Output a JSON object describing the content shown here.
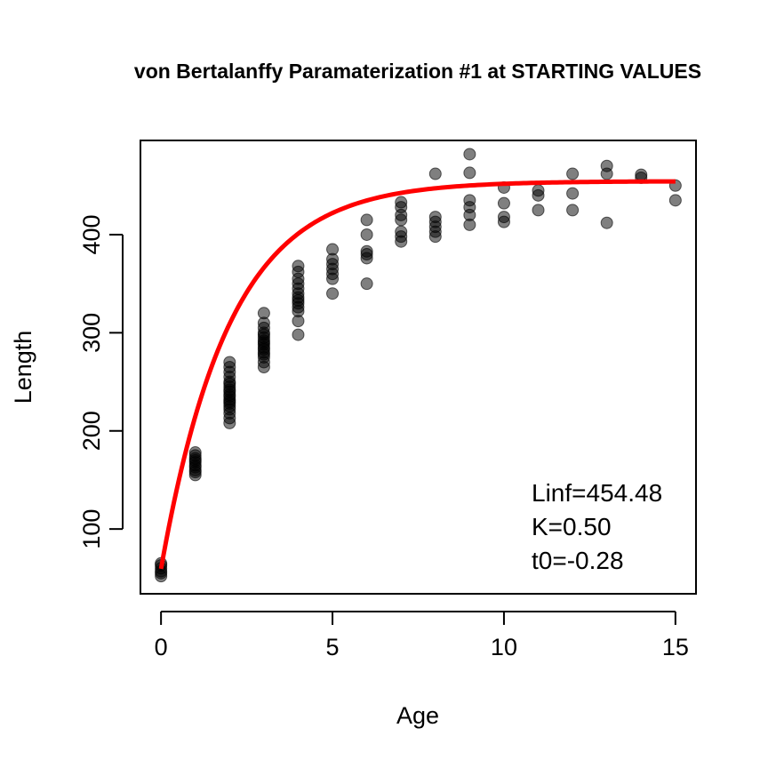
{
  "chart_data": {
    "type": "scatter",
    "title": "von Bertalanffy Paramaterization #1 at STARTING VALUES",
    "xlabel": "Age",
    "ylabel": "Length",
    "xlim": [
      -0.6,
      15.6
    ],
    "ylim": [
      34,
      496
    ],
    "x_ticks": [
      0,
      5,
      10,
      15
    ],
    "y_ticks": [
      100,
      200,
      300,
      400
    ],
    "grid": false,
    "point_color": "#000000",
    "point_opacity": 0.5,
    "curve_color": "#ff0000",
    "points": [
      [
        0,
        52
      ],
      [
        0,
        55
      ],
      [
        0,
        57
      ],
      [
        0,
        60
      ],
      [
        0,
        63
      ],
      [
        0,
        65
      ],
      [
        1,
        155
      ],
      [
        1,
        158
      ],
      [
        1,
        160
      ],
      [
        1,
        163
      ],
      [
        1,
        165
      ],
      [
        1,
        168
      ],
      [
        1,
        170
      ],
      [
        1,
        172
      ],
      [
        1,
        175
      ],
      [
        1,
        178
      ],
      [
        2,
        208
      ],
      [
        2,
        213
      ],
      [
        2,
        218
      ],
      [
        2,
        222
      ],
      [
        2,
        225
      ],
      [
        2,
        228
      ],
      [
        2,
        230
      ],
      [
        2,
        232
      ],
      [
        2,
        235
      ],
      [
        2,
        237
      ],
      [
        2,
        240
      ],
      [
        2,
        242
      ],
      [
        2,
        245
      ],
      [
        2,
        248
      ],
      [
        2,
        250
      ],
      [
        2,
        255
      ],
      [
        2,
        260
      ],
      [
        2,
        265
      ],
      [
        2,
        270
      ],
      [
        3,
        265
      ],
      [
        3,
        270
      ],
      [
        3,
        275
      ],
      [
        3,
        278
      ],
      [
        3,
        280
      ],
      [
        3,
        283
      ],
      [
        3,
        285
      ],
      [
        3,
        288
      ],
      [
        3,
        290
      ],
      [
        3,
        292
      ],
      [
        3,
        295
      ],
      [
        3,
        298
      ],
      [
        3,
        300
      ],
      [
        3,
        305
      ],
      [
        3,
        310
      ],
      [
        3,
        320
      ],
      [
        4,
        298
      ],
      [
        4,
        312
      ],
      [
        4,
        322
      ],
      [
        4,
        326
      ],
      [
        4,
        330
      ],
      [
        4,
        333
      ],
      [
        4,
        336
      ],
      [
        4,
        340
      ],
      [
        4,
        345
      ],
      [
        4,
        350
      ],
      [
        4,
        355
      ],
      [
        4,
        362
      ],
      [
        4,
        368
      ],
      [
        5,
        340
      ],
      [
        5,
        355
      ],
      [
        5,
        360
      ],
      [
        5,
        365
      ],
      [
        5,
        370
      ],
      [
        5,
        375
      ],
      [
        5,
        385
      ],
      [
        6,
        350
      ],
      [
        6,
        376
      ],
      [
        6,
        380
      ],
      [
        6,
        383
      ],
      [
        6,
        400
      ],
      [
        6,
        415
      ],
      [
        7,
        393
      ],
      [
        7,
        398
      ],
      [
        7,
        403
      ],
      [
        7,
        415
      ],
      [
        7,
        420
      ],
      [
        7,
        428
      ],
      [
        7,
        433
      ],
      [
        8,
        398
      ],
      [
        8,
        403
      ],
      [
        8,
        408
      ],
      [
        8,
        413
      ],
      [
        8,
        418
      ],
      [
        8,
        462
      ],
      [
        9,
        410
      ],
      [
        9,
        420
      ],
      [
        9,
        428
      ],
      [
        9,
        435
      ],
      [
        9,
        463
      ],
      [
        9,
        482
      ],
      [
        10,
        413
      ],
      [
        10,
        418
      ],
      [
        10,
        432
      ],
      [
        10,
        448
      ],
      [
        11,
        425
      ],
      [
        11,
        440
      ],
      [
        11,
        445
      ],
      [
        12,
        425
      ],
      [
        12,
        442
      ],
      [
        12,
        462
      ],
      [
        13,
        412
      ],
      [
        13,
        462
      ],
      [
        13,
        470
      ],
      [
        14,
        458
      ],
      [
        14,
        461
      ],
      [
        15,
        435
      ],
      [
        15,
        450
      ]
    ],
    "model": {
      "type": "von_bertalanffy",
      "Linf": 454.48,
      "K": 0.5,
      "t0": -0.28,
      "x_range": [
        0,
        15
      ]
    },
    "annotations": [
      "Linf=454.48",
      "K=0.50",
      "t0=-0.28"
    ],
    "annotation_position": "bottom-right"
  }
}
